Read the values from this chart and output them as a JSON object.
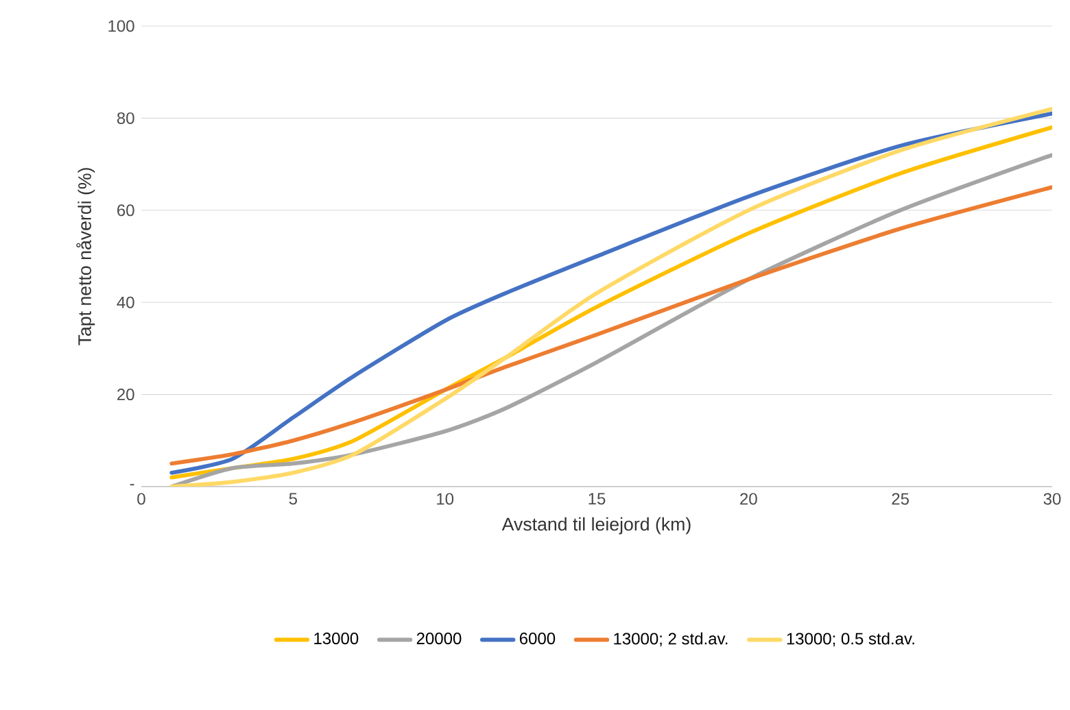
{
  "chart_data": {
    "type": "line",
    "xlabel": "Avstand til leiejord (km)",
    "ylabel": "Tapt netto nåverdi (%)",
    "xlim": [
      0,
      30
    ],
    "ylim": [
      0,
      100
    ],
    "xticks": [
      0,
      5,
      10,
      15,
      20,
      25,
      30
    ],
    "yticks": [
      {
        "value": 0,
        "label": "-"
      },
      20,
      40,
      60,
      80,
      100
    ],
    "grid": "y",
    "legend": "bottom",
    "marker": "none",
    "line_style": "solid",
    "x": [
      1,
      3,
      5,
      7,
      10,
      12,
      15,
      20,
      25,
      30
    ],
    "series": [
      {
        "name": "13000",
        "color": "#ffc000",
        "values": [
          2,
          4,
          6,
          10,
          21,
          28,
          39,
          55,
          68,
          78
        ]
      },
      {
        "name": "20000",
        "color": "#a5a5a5",
        "values": [
          0,
          4,
          5,
          7,
          12,
          17,
          27,
          45,
          60,
          72
        ]
      },
      {
        "name": "6000",
        "color": "#4472c4",
        "values": [
          3,
          6,
          15,
          24,
          36,
          42,
          50,
          63,
          74,
          81
        ]
      },
      {
        "name": "13000; 2 std.av.",
        "color": "#ed7d31",
        "values": [
          5,
          7,
          10,
          14,
          21,
          26,
          33,
          45,
          56,
          65
        ]
      },
      {
        "name": "13000; 0.5 std.av.",
        "color": "#ffd966",
        "values": [
          0,
          1,
          3,
          7,
          19,
          28,
          42,
          60,
          73,
          82
        ]
      }
    ]
  }
}
